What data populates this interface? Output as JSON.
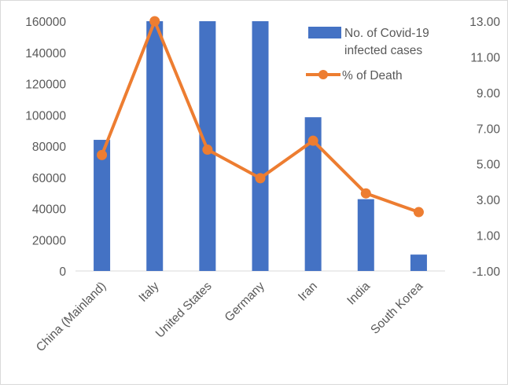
{
  "chart_data": {
    "type": "bar",
    "categories": [
      "China (Mainland)",
      "Italy",
      "United States",
      "Germany",
      "Iran",
      "India",
      "South Korea"
    ],
    "series": [
      {
        "name": "No. of Covid-19 infected cases",
        "type": "bar",
        "axis": "left",
        "values": [
          84000,
          160000,
          160000,
          160000,
          98500,
          46000,
          10500
        ]
      },
      {
        "name": "% of Death",
        "type": "line",
        "axis": "right",
        "values": [
          5.5,
          13.0,
          5.8,
          4.2,
          6.3,
          3.35,
          2.3
        ]
      }
    ],
    "y_left": {
      "ylim": [
        0,
        160000
      ],
      "ticks": [
        "0",
        "20000",
        "40000",
        "60000",
        "80000",
        "100000",
        "120000",
        "140000",
        "160000"
      ]
    },
    "y_right": {
      "ylim": [
        -1,
        13
      ],
      "ticks": [
        "-1.00",
        "1.00",
        "3.00",
        "5.00",
        "7.00",
        "9.00",
        "11.00",
        "13.00"
      ]
    },
    "legend": {
      "placement": "top-right",
      "bar_label_line1": "No. of Covid-19",
      "bar_label_line2": "infected cases",
      "line_label": "% of Death"
    },
    "grid": false,
    "colors": {
      "bar": "#4472C4",
      "line": "#ED7D31",
      "axis": "#d9d9d9",
      "text": "#595959"
    }
  }
}
